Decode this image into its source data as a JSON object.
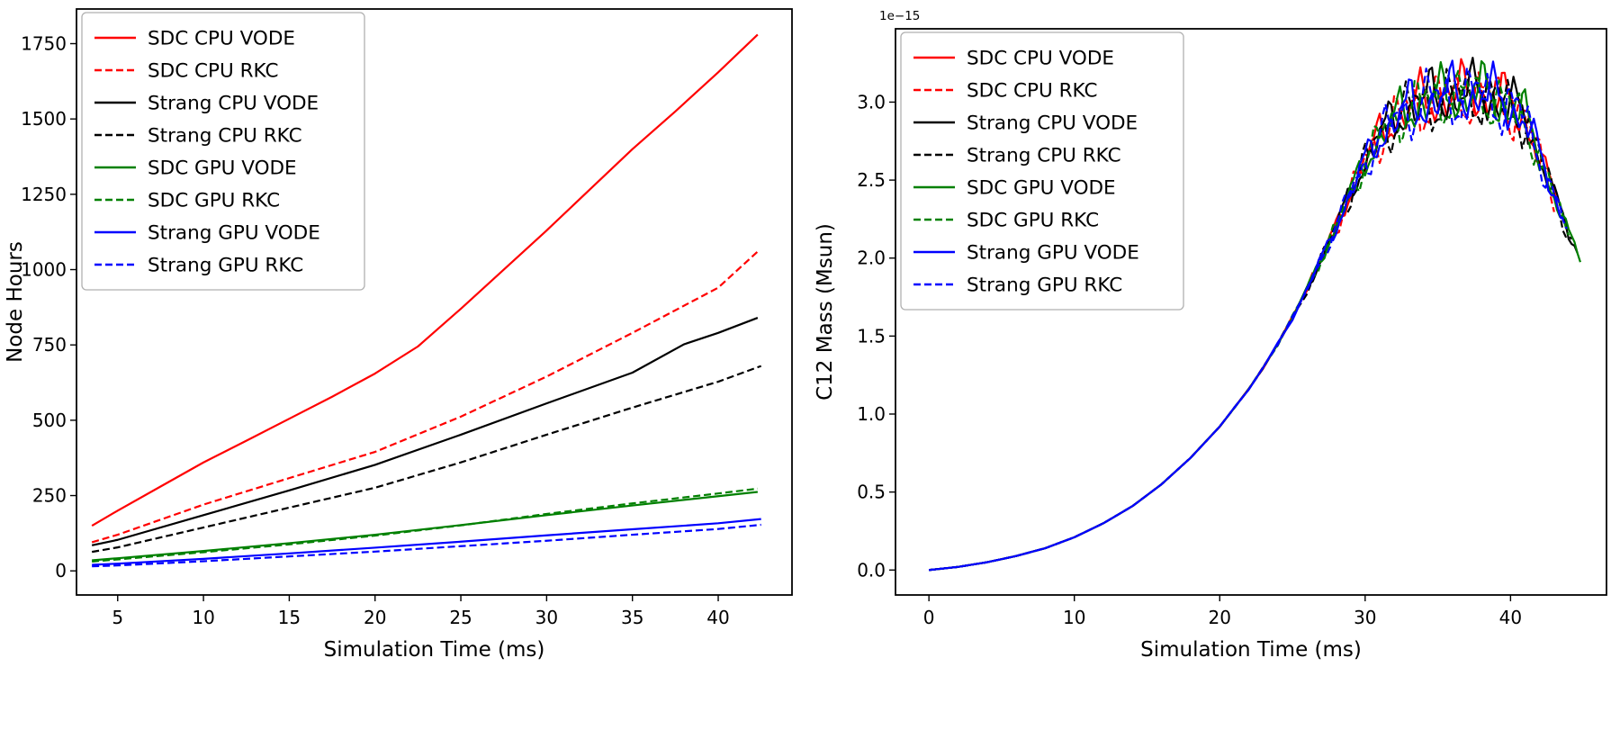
{
  "figure": {
    "background": "#ffffff",
    "xlabel_shared": "Simulation Time (ms)"
  },
  "chart_data": [
    {
      "type": "line",
      "title": "",
      "xlabel": "Simulation Time (ms)",
      "ylabel": "Node Hours",
      "xlim": [
        2.6,
        44.3
      ],
      "ylim": [
        -80,
        1865
      ],
      "xticks": [
        5,
        10,
        15,
        20,
        25,
        30,
        35,
        40
      ],
      "xticklabels": [
        "5",
        "10",
        "15",
        "20",
        "25",
        "30",
        "35",
        "40"
      ],
      "yticks": [
        0,
        250,
        500,
        750,
        1000,
        1250,
        1500,
        1750
      ],
      "yticklabels": [
        "0",
        "250",
        "500",
        "750",
        "1000",
        "1250",
        "1500",
        "1750"
      ],
      "grid": false,
      "legend_position": "upper left",
      "series": [
        {
          "name": "SDC CPU VODE",
          "color": "#ff0000",
          "dash": "solid",
          "x": [
            3.5,
            5,
            7.5,
            10,
            12.5,
            15,
            17.5,
            20,
            22.5,
            25,
            27.5,
            30,
            32.5,
            35,
            37.5,
            40,
            42.3
          ],
          "y": [
            150,
            200,
            280,
            360,
            432,
            505,
            578,
            655,
            745,
            870,
            1000,
            1130,
            1265,
            1400,
            1525,
            1655,
            1780
          ]
        },
        {
          "name": "SDC CPU RKC",
          "color": "#ff0000",
          "dash": "dashed",
          "x": [
            3.5,
            5,
            10,
            15,
            20,
            25,
            30,
            35,
            38.5,
            40,
            42.3
          ],
          "y": [
            95,
            120,
            220,
            308,
            395,
            512,
            645,
            790,
            895,
            940,
            1060
          ]
        },
        {
          "name": "Strang CPU VODE",
          "color": "#000000",
          "dash": "solid",
          "x": [
            3.5,
            5,
            10,
            15,
            20,
            25,
            30,
            35,
            38,
            40,
            42.3
          ],
          "y": [
            85,
            103,
            185,
            267,
            352,
            452,
            556,
            658,
            752,
            790,
            840
          ]
        },
        {
          "name": "Strang CPU RKC",
          "color": "#000000",
          "dash": "dashed",
          "x": [
            3.5,
            5,
            10,
            15,
            20,
            25,
            30,
            35,
            40,
            42.5
          ],
          "y": [
            63,
            78,
            144,
            210,
            276,
            360,
            452,
            542,
            628,
            680
          ]
        },
        {
          "name": "SDC GPU VODE",
          "color": "#008000",
          "dash": "solid",
          "x": [
            3.5,
            5,
            10,
            15,
            20,
            25,
            30,
            35,
            40,
            42.3
          ],
          "y": [
            35,
            42,
            66,
            92,
            120,
            152,
            185,
            217,
            248,
            262
          ]
        },
        {
          "name": "SDC GPU RKC",
          "color": "#008000",
          "dash": "dashed",
          "x": [
            3.5,
            5,
            10,
            15,
            20,
            25,
            30,
            35,
            40,
            42.3
          ],
          "y": [
            31,
            38,
            62,
            88,
            117,
            151,
            189,
            224,
            257,
            273
          ]
        },
        {
          "name": "Strang GPU VODE",
          "color": "#0000ff",
          "dash": "solid",
          "x": [
            3.5,
            5,
            10,
            15,
            20,
            25,
            30,
            35,
            40,
            42.5
          ],
          "y": [
            20,
            24,
            40,
            58,
            77,
            97,
            118,
            138,
            158,
            172
          ]
        },
        {
          "name": "Strang GPU RKC",
          "color": "#0000ff",
          "dash": "dashed",
          "x": [
            3.5,
            5,
            10,
            15,
            20,
            25,
            30,
            35,
            40,
            42.5
          ],
          "y": [
            15,
            18,
            32,
            48,
            64,
            82,
            100,
            120,
            139,
            153
          ]
        }
      ]
    },
    {
      "type": "line",
      "title": "",
      "xlabel": "Simulation Time (ms)",
      "ylabel": "C12 Mass (Msun)",
      "offset_label": "1e−15",
      "xlim": [
        -2.3,
        46.6
      ],
      "ylim": [
        -0.16,
        3.47
      ],
      "xticks": [
        0,
        10,
        20,
        30,
        40
      ],
      "xticklabels": [
        "0",
        "10",
        "20",
        "30",
        "40"
      ],
      "yticks": [
        0.0,
        0.5,
        1.0,
        1.5,
        2.0,
        2.5,
        3.0
      ],
      "yticklabels": [
        "0.0",
        "0.5",
        "1.0",
        "1.5",
        "2.0",
        "2.5",
        "3.0"
      ],
      "grid": false,
      "legend_position": "upper left",
      "note": "All eight runs overlap within solver noise: smooth rise from 0, noisy plateau near 3.0-3.3e-15 between 33-41 ms, steep drop to ~2e-15 by 43-45 ms.",
      "x_base": [
        0,
        2,
        4,
        6,
        8,
        10,
        12,
        14,
        16,
        18,
        20,
        21,
        22,
        23,
        24,
        25,
        26,
        27,
        28,
        29,
        30,
        31,
        32,
        33,
        34,
        35,
        36,
        37,
        38,
        39,
        40,
        41,
        42,
        43,
        44,
        44.8
      ],
      "y_base": [
        0,
        0.02,
        0.05,
        0.09,
        0.14,
        0.21,
        0.3,
        0.41,
        0.55,
        0.72,
        0.92,
        1.04,
        1.16,
        1.3,
        1.45,
        1.62,
        1.8,
        2.0,
        2.2,
        2.42,
        2.62,
        2.78,
        2.88,
        2.96,
        3.0,
        3.02,
        3.04,
        3.05,
        3.05,
        3.02,
        2.97,
        2.9,
        2.65,
        2.4,
        2.15,
        2.0
      ],
      "series": [
        {
          "name": "SDC CPU VODE",
          "color": "#ff0000",
          "dash": "solid",
          "seed": 0,
          "noise": 0.1,
          "x_max": 43.2
        },
        {
          "name": "SDC CPU RKC",
          "color": "#ff0000",
          "dash": "dashed",
          "seed": 1,
          "noise": 0.11,
          "x_max": 43.0
        },
        {
          "name": "Strang CPU VODE",
          "color": "#000000",
          "dash": "solid",
          "seed": 2,
          "noise": 0.1,
          "x_max": 44.6
        },
        {
          "name": "Strang CPU RKC",
          "color": "#000000",
          "dash": "dashed",
          "seed": 3,
          "noise": 0.11,
          "x_max": 44.2
        },
        {
          "name": "SDC GPU VODE",
          "color": "#008000",
          "dash": "solid",
          "seed": 4,
          "noise": 0.1,
          "x_max": 44.8
        },
        {
          "name": "SDC GPU RKC",
          "color": "#008000",
          "dash": "dashed",
          "seed": 5,
          "noise": 0.1,
          "x_max": 44.0
        },
        {
          "name": "Strang GPU VODE",
          "color": "#0000ff",
          "dash": "solid",
          "seed": 6,
          "noise": 0.1,
          "x_max": 43.5
        },
        {
          "name": "Strang GPU RKC",
          "color": "#0000ff",
          "dash": "dashed",
          "seed": 7,
          "noise": 0.11,
          "x_max": 43.9
        }
      ]
    }
  ]
}
